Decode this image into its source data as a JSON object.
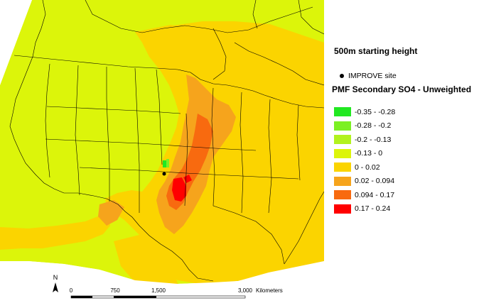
{
  "map": {
    "subtitle": "500m starting height",
    "site_legend_label": "IMPROVE site",
    "legend_title": "PMF Secondary SO4 - Unweighted",
    "classes": [
      {
        "label": "-0.35 - -0.28",
        "color": "#22e822"
      },
      {
        "label": "-0.28 - -0.2",
        "color": "#7cf023"
      },
      {
        "label": "-0.2 - -0.13",
        "color": "#b2f21e"
      },
      {
        "label": "-0.13 - 0",
        "color": "#dcf50a"
      },
      {
        "label": "0 - 0.02",
        "color": "#fbd400"
      },
      {
        "label": "0.02 - 0.094",
        "color": "#f6a41c"
      },
      {
        "label": "0.094 - 0.17",
        "color": "#f86a0f"
      },
      {
        "label": "0.17 - 0.24",
        "color": "#ff0000"
      }
    ],
    "scale_bar": {
      "ticks": [
        "0",
        "750",
        "1,500",
        "3,000"
      ],
      "unit": "Kilometers"
    },
    "north_arrow": "N",
    "ocean_color": "#ffffff",
    "line_color": "#000000"
  }
}
